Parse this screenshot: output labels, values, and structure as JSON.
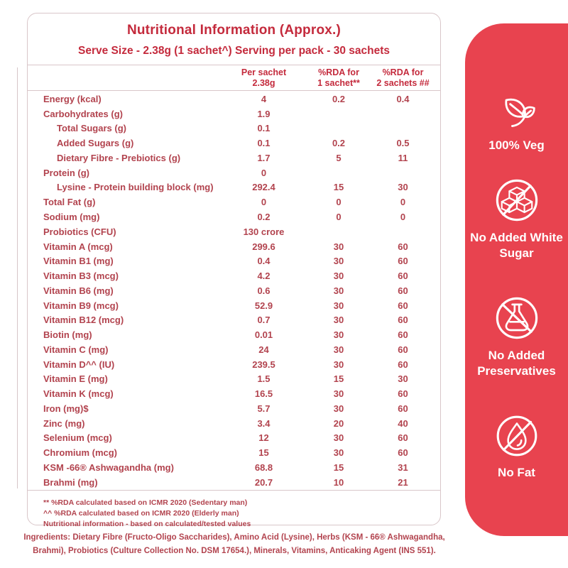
{
  "colors": {
    "panel-red": "#e8434f",
    "title-red": "#c42a3c",
    "text-red": "#b2434e",
    "border": "#d9c6c9"
  },
  "header": {
    "title": "Nutritional Information (Approx.)",
    "serve_line": "Serve Size - 2.38g (1 sachet^) Serving per pack - 30 sachets"
  },
  "table": {
    "columns": [
      {
        "line1": "Per sachet",
        "line2": "2.38g"
      },
      {
        "line1": "%RDA for",
        "line2": "1 sachet**"
      },
      {
        "line1": "%RDA for",
        "line2": "2 sachets ##"
      }
    ],
    "rows": [
      {
        "label": "Energy (kcal)",
        "indent": false,
        "per_sachet": "4",
        "rda1": "0.2",
        "rda2": "0.4"
      },
      {
        "label": "Carbohydrates (g)",
        "indent": false,
        "per_sachet": "1.9",
        "rda1": "",
        "rda2": ""
      },
      {
        "label": "Total Sugars (g)",
        "indent": true,
        "per_sachet": "0.1",
        "rda1": "",
        "rda2": ""
      },
      {
        "label": "Added Sugars (g)",
        "indent": true,
        "per_sachet": "0.1",
        "rda1": "0.2",
        "rda2": "0.5"
      },
      {
        "label": "Dietary Fibre - Prebiotics (g)",
        "indent": true,
        "per_sachet": "1.7",
        "rda1": "5",
        "rda2": "11"
      },
      {
        "label": "Protein (g)",
        "indent": false,
        "per_sachet": "0",
        "rda1": "",
        "rda2": ""
      },
      {
        "label": "Lysine - Protein building block  (mg)",
        "indent": true,
        "per_sachet": "292.4",
        "rda1": "15",
        "rda2": "30"
      },
      {
        "label": "Total Fat (g)",
        "indent": false,
        "per_sachet": "0",
        "rda1": "0",
        "rda2": "0"
      },
      {
        "label": "Sodium (mg)",
        "indent": false,
        "per_sachet": "0.2",
        "rda1": "0",
        "rda2": "0"
      },
      {
        "label": "Probiotics (CFU)",
        "indent": false,
        "per_sachet": "130 crore",
        "rda1": "",
        "rda2": ""
      },
      {
        "label": "Vitamin A (mcg)",
        "indent": false,
        "per_sachet": "299.6",
        "rda1": "30",
        "rda2": "60"
      },
      {
        "label": "Vitamin B1 (mg)",
        "indent": false,
        "per_sachet": "0.4",
        "rda1": "30",
        "rda2": "60"
      },
      {
        "label": "Vitamin B3 (mcg)",
        "indent": false,
        "per_sachet": "4.2",
        "rda1": "30",
        "rda2": "60"
      },
      {
        "label": "Vitamin B6 (mg)",
        "indent": false,
        "per_sachet": "0.6",
        "rda1": "30",
        "rda2": "60"
      },
      {
        "label": "Vitamin B9 (mcg)",
        "indent": false,
        "per_sachet": "52.9",
        "rda1": "30",
        "rda2": "60"
      },
      {
        "label": "Vitamin B12 (mcg)",
        "indent": false,
        "per_sachet": "0.7",
        "rda1": "30",
        "rda2": "60"
      },
      {
        "label": "Biotin (mg)",
        "indent": false,
        "per_sachet": "0.01",
        "rda1": "30",
        "rda2": "60"
      },
      {
        "label": "Vitamin C (mg)",
        "indent": false,
        "per_sachet": "24",
        "rda1": "30",
        "rda2": "60"
      },
      {
        "label": "Vitamin D^^ (IU)",
        "indent": false,
        "per_sachet": "239.5",
        "rda1": "30",
        "rda2": "60"
      },
      {
        "label": "Vitamin E (mg)",
        "indent": false,
        "per_sachet": "1.5",
        "rda1": "15",
        "rda2": "30"
      },
      {
        "label": "Vitamin K (mcg)",
        "indent": false,
        "per_sachet": "16.5",
        "rda1": "30",
        "rda2": "60"
      },
      {
        "label": "Iron (mg)$",
        "indent": false,
        "per_sachet": "5.7",
        "rda1": "30",
        "rda2": "60"
      },
      {
        "label": "Zinc (mg)",
        "indent": false,
        "per_sachet": "3.4",
        "rda1": "20",
        "rda2": "40"
      },
      {
        "label": "Selenium (mcg)",
        "indent": false,
        "per_sachet": "12",
        "rda1": "30",
        "rda2": "60"
      },
      {
        "label": "Chromium (mcg)",
        "indent": false,
        "per_sachet": "15",
        "rda1": "30",
        "rda2": "60"
      },
      {
        "label": "KSM -66® Ashwagandha (mg)",
        "indent": false,
        "per_sachet": "68.8",
        "rda1": "15",
        "rda2": "31"
      },
      {
        "label": "Brahmi (mg)",
        "indent": false,
        "per_sachet": "20.7",
        "rda1": "10",
        "rda2": "21"
      }
    ]
  },
  "footnotes": [
    "** %RDA calculated based on ICMR 2020 (Sedentary man)",
    "^^ %RDA calculated based on ICMR 2020 (Elderly man)",
    "Nutritional information - based on calculated/tested values"
  ],
  "ingredients": "Ingredients: Dietary Fibre (Fructo-Oligo Saccharides), Amino Acid (Lysine), Herbs (KSM - 66® Ashwagandha, Brahmi), Probiotics (Culture Collection No. DSM 17654.), Minerals, Vitamins, Anticaking Agent (INS 551).",
  "badges": [
    {
      "icon": "leaf-icon",
      "label": "100% Veg"
    },
    {
      "icon": "no-sugar-icon",
      "label": "No Added White Sugar"
    },
    {
      "icon": "no-preservatives-icon",
      "label": "No Added Preservatives"
    },
    {
      "icon": "no-fat-icon",
      "label": "No Fat"
    }
  ]
}
